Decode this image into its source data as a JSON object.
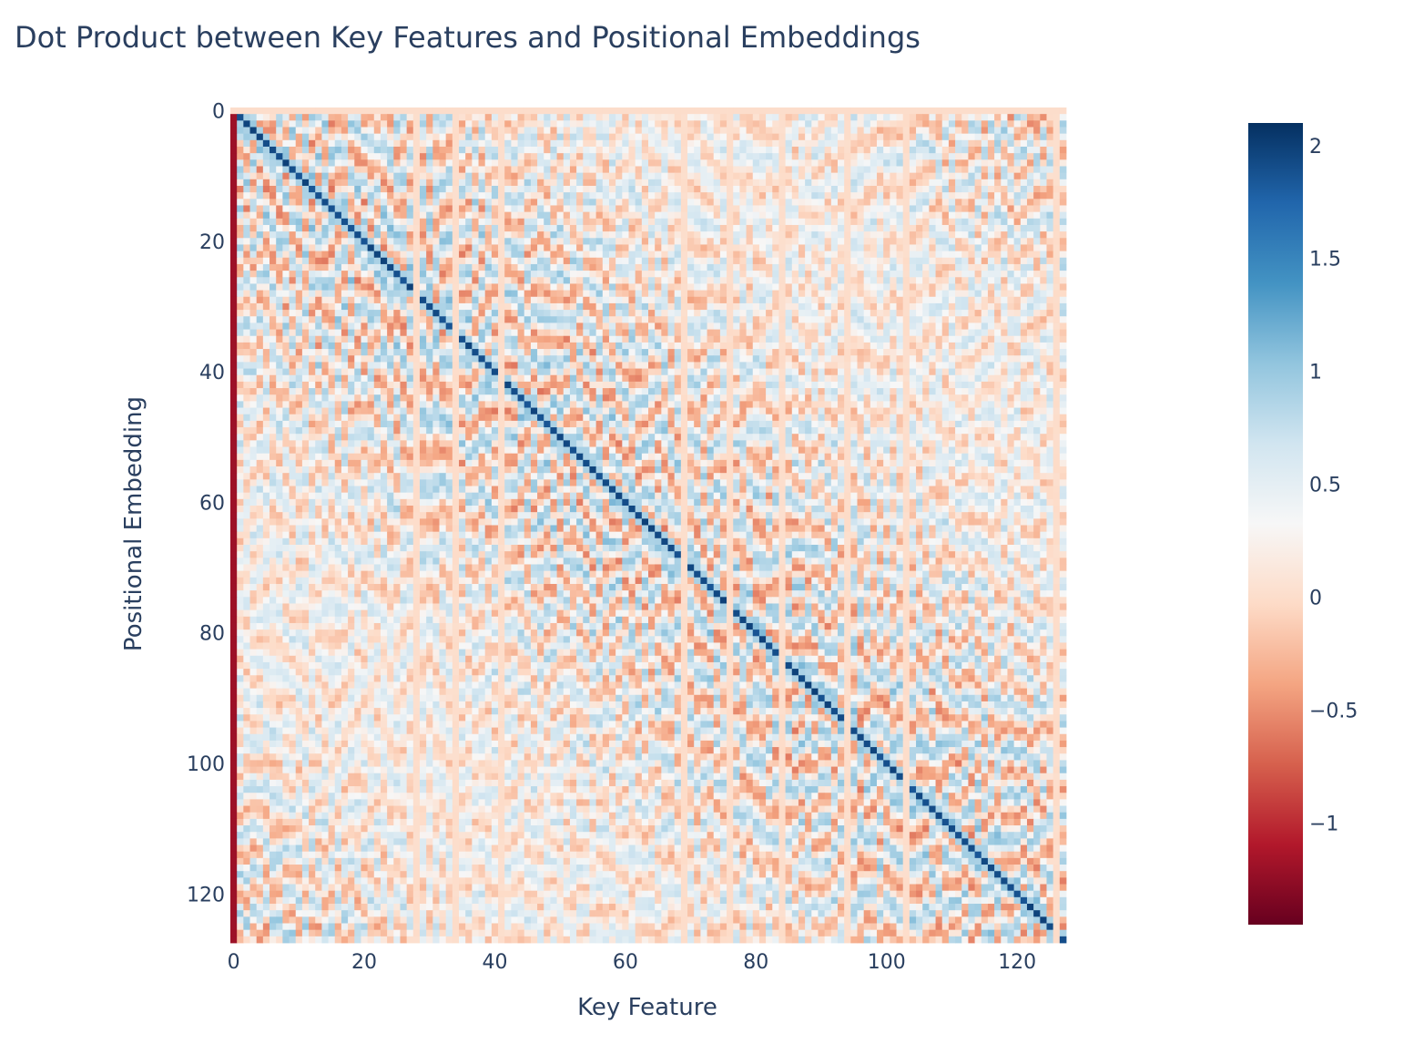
{
  "chart_data": {
    "type": "heatmap",
    "title": "Dot Product between Key Features and Positional Embeddings",
    "xlabel": "Key Feature",
    "ylabel": "Positional Embedding",
    "x_range": [
      0,
      127
    ],
    "y_range": [
      0,
      127
    ],
    "y_reversed": true,
    "x_ticks": [
      "0",
      "20",
      "40",
      "60",
      "80",
      "100",
      "120"
    ],
    "y_ticks": [
      "0",
      "20",
      "40",
      "60",
      "80",
      "100",
      "120"
    ],
    "colorscale": "RdBu",
    "color_range": [
      -1.45,
      2.1
    ],
    "colorbar_ticks": [
      "2",
      "1.5",
      "1",
      "0.5",
      "0",
      "−0.5",
      "−1"
    ],
    "colorbar_tick_values": [
      2,
      1.5,
      1,
      0.5,
      0,
      -0.5,
      -1
    ],
    "strong_diagonal_value": 2.0,
    "near_zero_columns": [
      0,
      28,
      34,
      41,
      69,
      76,
      84,
      94,
      103,
      126
    ],
    "uniform_row_value": 0.0,
    "uniform_row_index": 0,
    "column_0_value": -1.2,
    "grid": false
  }
}
